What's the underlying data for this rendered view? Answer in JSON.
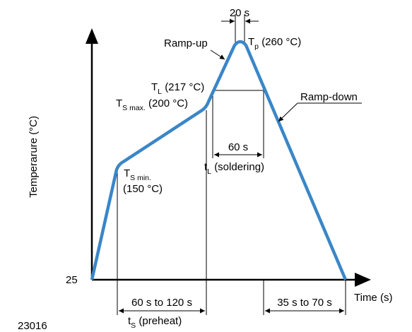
{
  "figure_id": "23016",
  "y_axis": {
    "label": "Temperarure (°C)",
    "base_value": "25"
  },
  "x_axis": {
    "label": "Time (s)"
  },
  "curve": {
    "color": "#3a86c8",
    "peak": {
      "symbol": "T",
      "subscript": "p",
      "value": "(260 °C)"
    },
    "liquidus": {
      "symbol": "T",
      "subscript": "L",
      "value": "(217 °C)"
    },
    "soak_max": {
      "symbol": "T",
      "subscript": "S max.",
      "value": "(200 °C)"
    },
    "soak_min": {
      "symbol": "T",
      "subscript": "S min.",
      "value": "(150 °C)"
    }
  },
  "callouts": {
    "ramp_up": "Ramp-up",
    "ramp_down": "Ramp-down"
  },
  "dimensions": {
    "peak_duration": "20 s",
    "liquidus_duration": "60 s",
    "liquidus_label": {
      "symbol": "t",
      "subscript": "L",
      "text": "(soldering)"
    },
    "preheat_duration": "60 s to 120 s",
    "preheat_label": {
      "symbol": "t",
      "subscript": "S",
      "text": "(preheat)"
    },
    "cooling_duration": "35 s to 70 s"
  }
}
